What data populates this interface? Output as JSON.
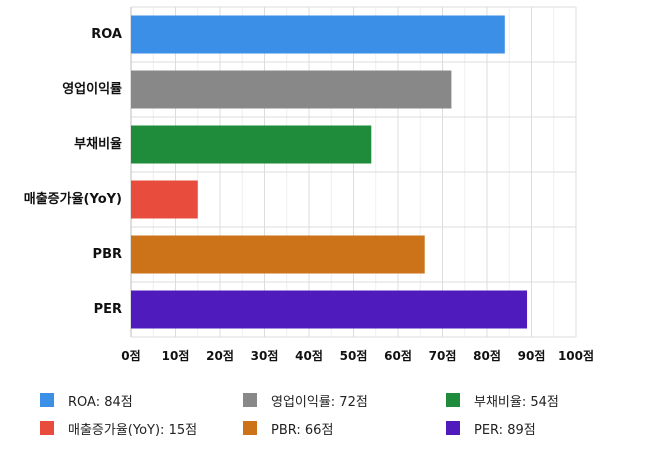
{
  "chart_data": {
    "type": "bar",
    "orientation": "horizontal",
    "categories": [
      "ROA",
      "영업이익률",
      "부채비율",
      "매출증가율(YoY)",
      "PBR",
      "PER"
    ],
    "values": [
      84,
      72,
      54,
      15,
      66,
      89
    ],
    "colors": [
      "#3b8fe6",
      "#888888",
      "#1e8c3a",
      "#e84c3d",
      "#cc7218",
      "#4f1bbd"
    ],
    "xlim": [
      0,
      100
    ],
    "ticks": [
      0,
      10,
      20,
      30,
      40,
      50,
      60,
      70,
      80,
      90,
      100
    ],
    "tick_labels": [
      "0점",
      "10점",
      "20점",
      "30점",
      "40점",
      "50점",
      "60점",
      "70점",
      "80점",
      "90점",
      "100점"
    ],
    "grid": true,
    "legend_position": "bottom",
    "legend": [
      "ROA: 84점",
      "영업이익률: 72점",
      "부채비율: 54점",
      "매출증가율(YoY): 15점",
      "PBR: 66점",
      "PER: 89점"
    ]
  }
}
